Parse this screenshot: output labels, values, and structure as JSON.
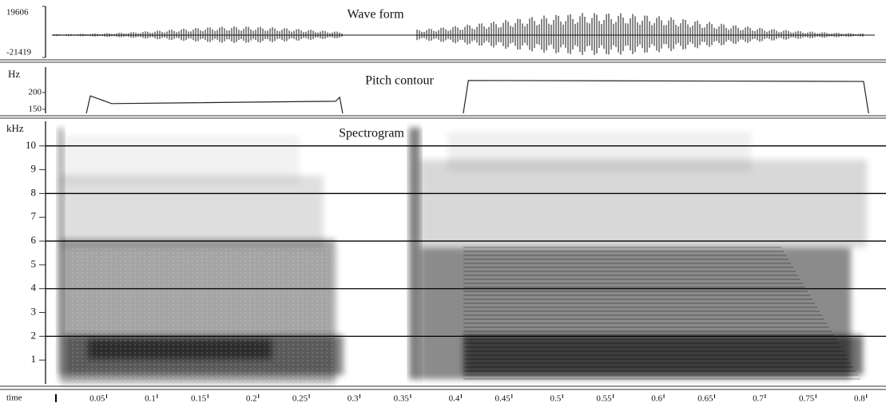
{
  "chart_data": [
    {
      "type": "waveform",
      "title": "Wave form",
      "ylim": [
        -21419,
        19606
      ],
      "yticks": [
        19606,
        -21419
      ]
    },
    {
      "type": "line",
      "title": "Pitch contour",
      "y_label": "Hz",
      "ylim": [
        138,
        276
      ],
      "yticks": [
        150,
        200
      ],
      "x": [
        0.03,
        0.034,
        0.055,
        0.276,
        0.28,
        0.283,
        0.29,
        0.402,
        0.407,
        0.797,
        0.802
      ],
      "values": [
        138,
        190,
        167,
        174,
        186,
        138,
        null,
        138,
        236,
        233,
        138
      ],
      "color": "#222222"
    },
    {
      "type": "spectrogram",
      "title": "Spectrogram",
      "y_label": "kHz",
      "ylim": [
        0,
        11.1
      ],
      "yticks": [
        1,
        2,
        3,
        4,
        5,
        6,
        7,
        8,
        9,
        10
      ],
      "grid_lines": [
        2,
        4,
        6,
        8,
        10
      ]
    },
    {
      "type": "axis",
      "x_label": "time",
      "xlim": [
        0,
        0.816
      ],
      "xticks": [
        0.05,
        0.1,
        0.15,
        0.2,
        0.25,
        0.3,
        0.35,
        0.4,
        0.45,
        0.5,
        0.55,
        0.6,
        0.65,
        0.7,
        0.75,
        0.8
      ]
    }
  ]
}
